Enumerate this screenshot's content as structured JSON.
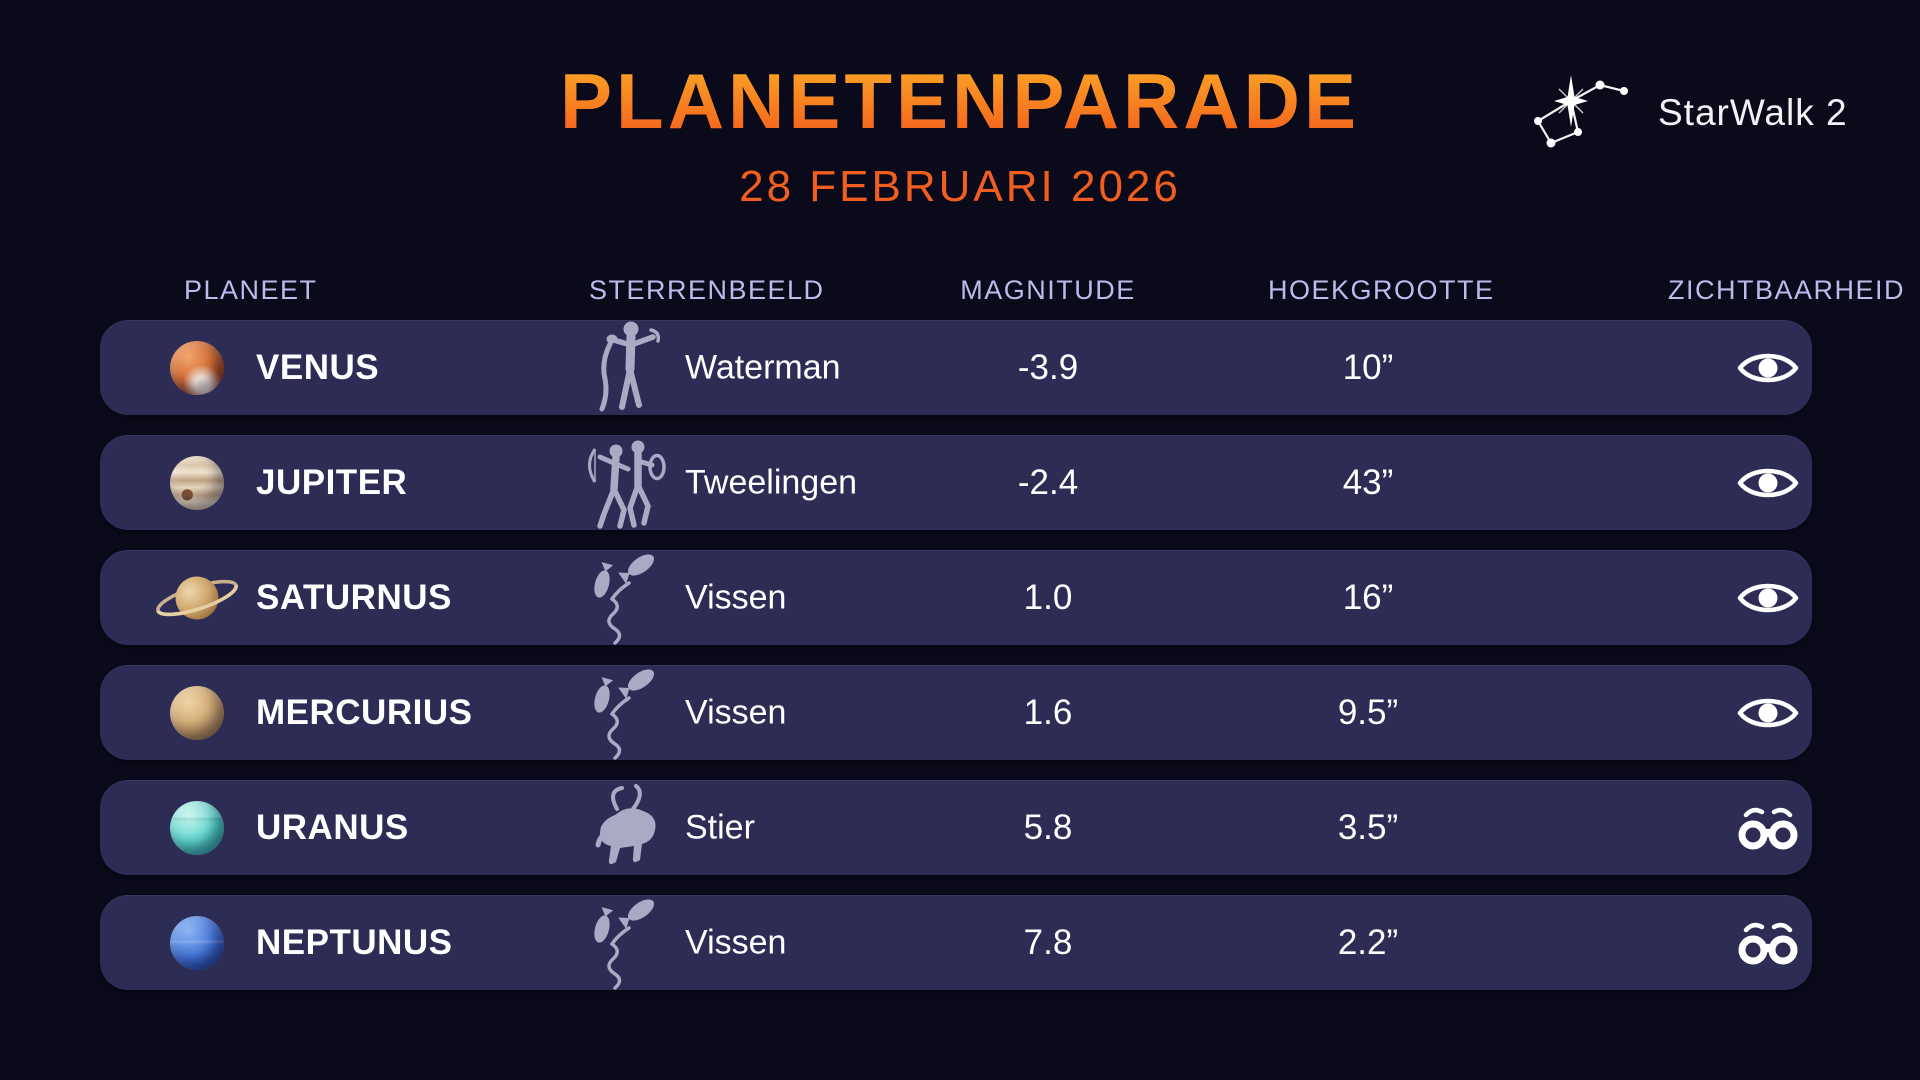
{
  "page": {
    "title": "PLANETENPARADE",
    "date": "28 FEBRUARI 2026"
  },
  "logo": {
    "text": "StarWalk 2",
    "icon": "constellation-logo-icon"
  },
  "colors": {
    "background": "#0a0a1b",
    "row_background": "#2d2c55",
    "title_gradient_top": "#fcae27",
    "title_gradient_bottom": "#f3571c",
    "date_text": "#f05f1f",
    "header_text": "#bdbbec",
    "body_text": "#ffffff"
  },
  "table": {
    "columns": [
      "PLANEET",
      "STERRENBEELD",
      "MAGNITUDE",
      "HOEKGROOTTE",
      "ZICHTBAARHEID"
    ],
    "rows": [
      {
        "planet": "VENUS",
        "planet_icon": "venus-planet-icon",
        "constellation": "Waterman",
        "constellation_icon": "aquarius-icon",
        "magnitude": "-3.9",
        "angular_size": "10”",
        "visibility_icon": "eye-icon"
      },
      {
        "planet": "JUPITER",
        "planet_icon": "jupiter-planet-icon",
        "constellation": "Tweelingen",
        "constellation_icon": "gemini-icon",
        "magnitude": "-2.4",
        "angular_size": "43”",
        "visibility_icon": "eye-icon"
      },
      {
        "planet": "SATURNUS",
        "planet_icon": "saturnus-planet-icon",
        "constellation": "Vissen",
        "constellation_icon": "pisces-icon",
        "magnitude": "1.0",
        "angular_size": "16”",
        "visibility_icon": "eye-icon"
      },
      {
        "planet": "MERCURIUS",
        "planet_icon": "mercurius-planet-icon",
        "constellation": "Vissen",
        "constellation_icon": "pisces-icon",
        "magnitude": "1.6",
        "angular_size": "9.5”",
        "visibility_icon": "eye-icon"
      },
      {
        "planet": "URANUS",
        "planet_icon": "uranus-planet-icon",
        "constellation": "Stier",
        "constellation_icon": "taurus-icon",
        "magnitude": "5.8",
        "angular_size": "3.5”",
        "visibility_icon": "binoculars-icon"
      },
      {
        "planet": "NEPTUNUS",
        "planet_icon": "neptunus-planet-icon",
        "constellation": "Vissen",
        "constellation_icon": "pisces-icon",
        "magnitude": "7.8",
        "angular_size": "2.2”",
        "visibility_icon": "binoculars-icon"
      }
    ]
  },
  "chart_data": {
    "type": "table",
    "title": "PLANETENPARADE",
    "subtitle": "28 FEBRUARI 2026",
    "columns": [
      "PLANEET",
      "STERRENBEELD",
      "MAGNITUDE",
      "HOEKGROOTTE",
      "ZICHTBAARHEID"
    ],
    "rows": [
      [
        "VENUS",
        "Waterman",
        -3.9,
        "10”",
        "naked-eye"
      ],
      [
        "JUPITER",
        "Tweelingen",
        -2.4,
        "43”",
        "naked-eye"
      ],
      [
        "SATURNUS",
        "Vissen",
        1.0,
        "16”",
        "naked-eye"
      ],
      [
        "MERCURIUS",
        "Vissen",
        1.6,
        "9.5”",
        "naked-eye"
      ],
      [
        "URANUS",
        "Stier",
        5.8,
        "3.5”",
        "binoculars"
      ],
      [
        "NEPTUNUS",
        "Vissen",
        7.8,
        "2.2”",
        "binoculars"
      ]
    ]
  }
}
